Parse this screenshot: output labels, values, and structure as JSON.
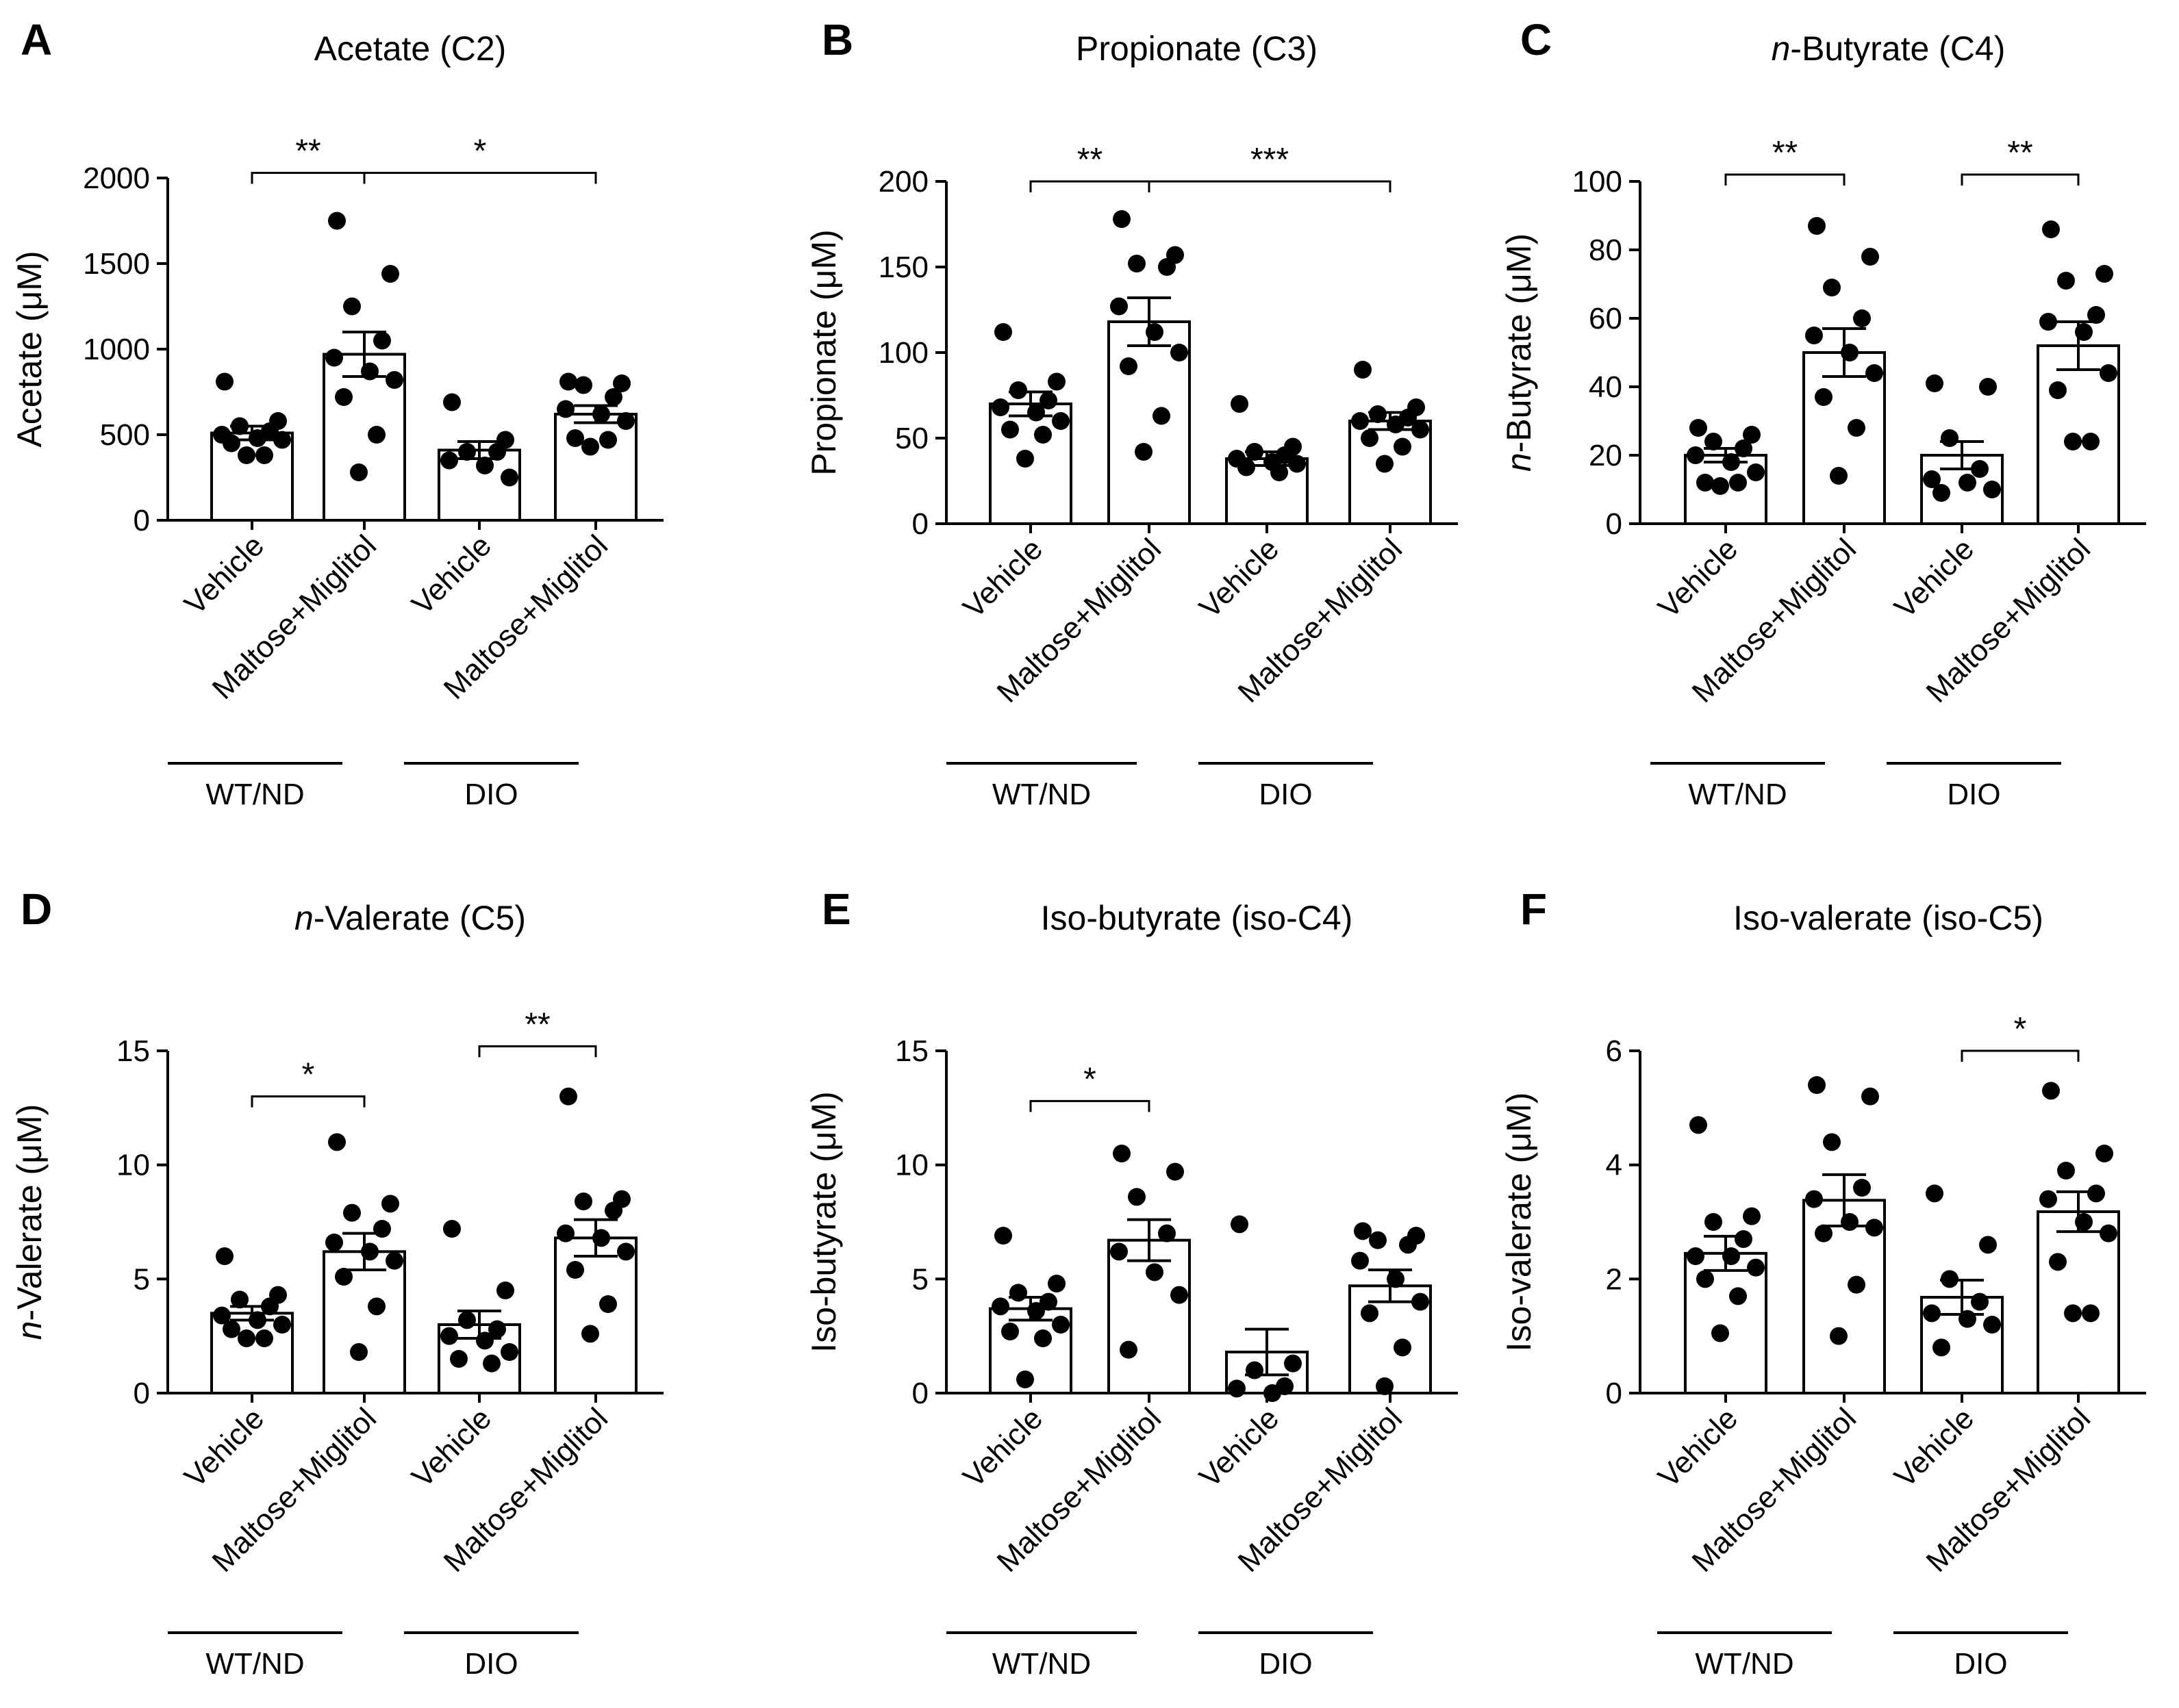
{
  "categories": [
    "Vehicle",
    "Maltose+Miglitol",
    "Vehicle",
    "Maltose+Miglitol"
  ],
  "groups": [
    "WT/ND",
    "DIO"
  ],
  "chart_data": [
    {
      "type": "bar",
      "panel": "A",
      "title": "Acetate (C2)",
      "ylabel": "Acetate (μM)",
      "ylim": [
        0,
        2000
      ],
      "yticks": [
        0,
        500,
        1000,
        1500,
        2000
      ],
      "means": [
        510,
        970,
        410,
        620
      ],
      "sem": [
        40,
        130,
        50,
        50
      ],
      "points": [
        [
          810,
          580,
          550,
          520,
          500,
          480,
          470,
          450,
          380,
          380
        ],
        [
          1750,
          1440,
          1250,
          1050,
          950,
          870,
          820,
          720,
          500,
          280
        ],
        [
          690,
          470,
          400,
          400,
          350,
          320,
          250
        ],
        [
          810,
          800,
          790,
          720,
          650,
          620,
          580,
          480,
          470,
          430
        ]
      ],
      "brackets": [
        {
          "from": 0,
          "to": 1,
          "label": "**",
          "level": 2030
        },
        {
          "from": 1,
          "to": 3,
          "label": "*",
          "level": 2030
        }
      ]
    },
    {
      "type": "bar",
      "panel": "B",
      "title": "Propionate (C3)",
      "ylabel": "Propionate (μM)",
      "ylim": [
        0,
        200
      ],
      "yticks": [
        0,
        50,
        100,
        150,
        200
      ],
      "means": [
        70,
        118,
        38,
        60
      ],
      "sem": [
        7,
        14,
        4,
        5
      ],
      "points": [
        [
          112,
          83,
          78,
          72,
          68,
          65,
          60,
          55,
          52,
          38
        ],
        [
          178,
          157,
          152,
          150,
          127,
          112,
          100,
          92,
          63,
          42
        ],
        [
          70,
          45,
          42,
          40,
          38,
          36,
          35,
          33,
          30
        ],
        [
          90,
          68,
          64,
          62,
          60,
          58,
          55,
          50,
          45,
          35
        ]
      ],
      "brackets": [
        {
          "from": 0,
          "to": 1,
          "label": "**",
          "level": 200
        },
        {
          "from": 1,
          "to": 3,
          "label": "***",
          "level": 200
        }
      ]
    },
    {
      "type": "bar",
      "panel": "C",
      "title": "n-Butyrate (C4)",
      "title_italic": "n",
      "title_rest": "-Butyrate (C4)",
      "ylabel": "n-Butyrate (μM)",
      "ylabel_italic": "n",
      "ylabel_rest": "-Butyrate (μM)",
      "ylim": [
        0,
        100
      ],
      "yticks": [
        0,
        20,
        40,
        60,
        80,
        100
      ],
      "means": [
        20,
        50,
        20,
        52
      ],
      "sem": [
        2,
        7,
        4,
        7
      ],
      "points": [
        [
          28,
          26,
          24,
          22,
          20,
          18,
          15,
          12,
          12,
          11
        ],
        [
          87,
          78,
          69,
          60,
          55,
          50,
          44,
          37,
          28,
          14
        ],
        [
          41,
          40,
          25,
          16,
          13,
          12,
          10,
          9
        ],
        [
          86,
          73,
          71,
          61,
          59,
          56,
          44,
          39,
          24,
          24
        ]
      ],
      "brackets": [
        {
          "from": 0,
          "to": 1,
          "label": "**",
          "level": 102
        },
        {
          "from": 2,
          "to": 3,
          "label": "**",
          "level": 102
        }
      ]
    },
    {
      "type": "bar",
      "panel": "D",
      "title": "n-Valerate (C5)",
      "title_italic": "n",
      "title_rest": "-Valerate (C5)",
      "ylabel": "n-Valerate (μM)",
      "ylabel_italic": "n",
      "ylabel_rest": "-Valerate (μM)",
      "ylim": [
        0,
        15
      ],
      "yticks": [
        0,
        5,
        10,
        15
      ],
      "means": [
        3.5,
        6.2,
        3.0,
        6.8
      ],
      "sem": [
        0.3,
        0.8,
        0.6,
        0.8
      ],
      "points": [
        [
          6.0,
          4.3,
          4.1,
          3.8,
          3.4,
          3.2,
          3.0,
          2.8,
          2.4,
          2.4
        ],
        [
          11.0,
          8.3,
          7.9,
          7.2,
          6.6,
          6.2,
          5.8,
          5.1,
          3.8,
          1.8
        ],
        [
          7.2,
          4.5,
          3.2,
          2.8,
          2.5,
          2.3,
          1.8,
          1.5,
          1.3
        ],
        [
          13.0,
          8.5,
          8.4,
          8.0,
          7.0,
          6.8,
          6.2,
          5.4,
          3.9,
          2.6
        ]
      ],
      "brackets": [
        {
          "from": 0,
          "to": 1,
          "label": "*",
          "level": 13.0
        },
        {
          "from": 2,
          "to": 3,
          "label": "**",
          "level": 15.2
        }
      ]
    },
    {
      "type": "bar",
      "panel": "E",
      "title": "Iso-butyrate (iso-C4)",
      "ylabel": "Iso-butyrate (μM)",
      "ylim": [
        0,
        15
      ],
      "yticks": [
        0,
        5,
        10,
        15
      ],
      "means": [
        3.7,
        6.7,
        1.8,
        4.7
      ],
      "sem": [
        0.5,
        0.9,
        1.0,
        0.7
      ],
      "points": [
        [
          6.9,
          4.8,
          4.4,
          4.0,
          3.8,
          3.6,
          3.0,
          2.7,
          2.4,
          0.6
        ],
        [
          10.5,
          9.7,
          8.6,
          7.0,
          6.2,
          5.3,
          4.3,
          1.9
        ],
        [
          7.4,
          1.3,
          1.0,
          0.3,
          0.2,
          0.0
        ],
        [
          7.1,
          6.9,
          6.7,
          6.5,
          5.8,
          5.0,
          4.0,
          3.5,
          2.0,
          0.3
        ]
      ],
      "brackets": [
        {
          "from": 0,
          "to": 1,
          "label": "*",
          "level": 12.8
        }
      ]
    },
    {
      "type": "bar",
      "panel": "F",
      "title": "Iso-valerate (iso-C5)",
      "ylabel": "Iso-valerate (μM)",
      "ylim": [
        0,
        6
      ],
      "yticks": [
        0,
        2,
        4,
        6
      ],
      "means": [
        2.45,
        3.38,
        1.68,
        3.18
      ],
      "sem": [
        0.3,
        0.45,
        0.3,
        0.35
      ],
      "points": [
        [
          4.7,
          3.1,
          3.0,
          2.7,
          2.4,
          2.4,
          2.2,
          2.0,
          1.7,
          1.05
        ],
        [
          5.4,
          5.2,
          4.4,
          3.6,
          3.4,
          3.0,
          2.9,
          2.8,
          1.9,
          1.0
        ],
        [
          3.5,
          2.6,
          2.0,
          1.6,
          1.4,
          1.3,
          1.2,
          0.8
        ],
        [
          5.3,
          4.2,
          3.9,
          3.5,
          3.4,
          3.0,
          2.8,
          2.3,
          1.4,
          1.4
        ]
      ],
      "brackets": [
        {
          "from": 2,
          "to": 3,
          "label": "*",
          "level": 6.0
        }
      ]
    }
  ]
}
